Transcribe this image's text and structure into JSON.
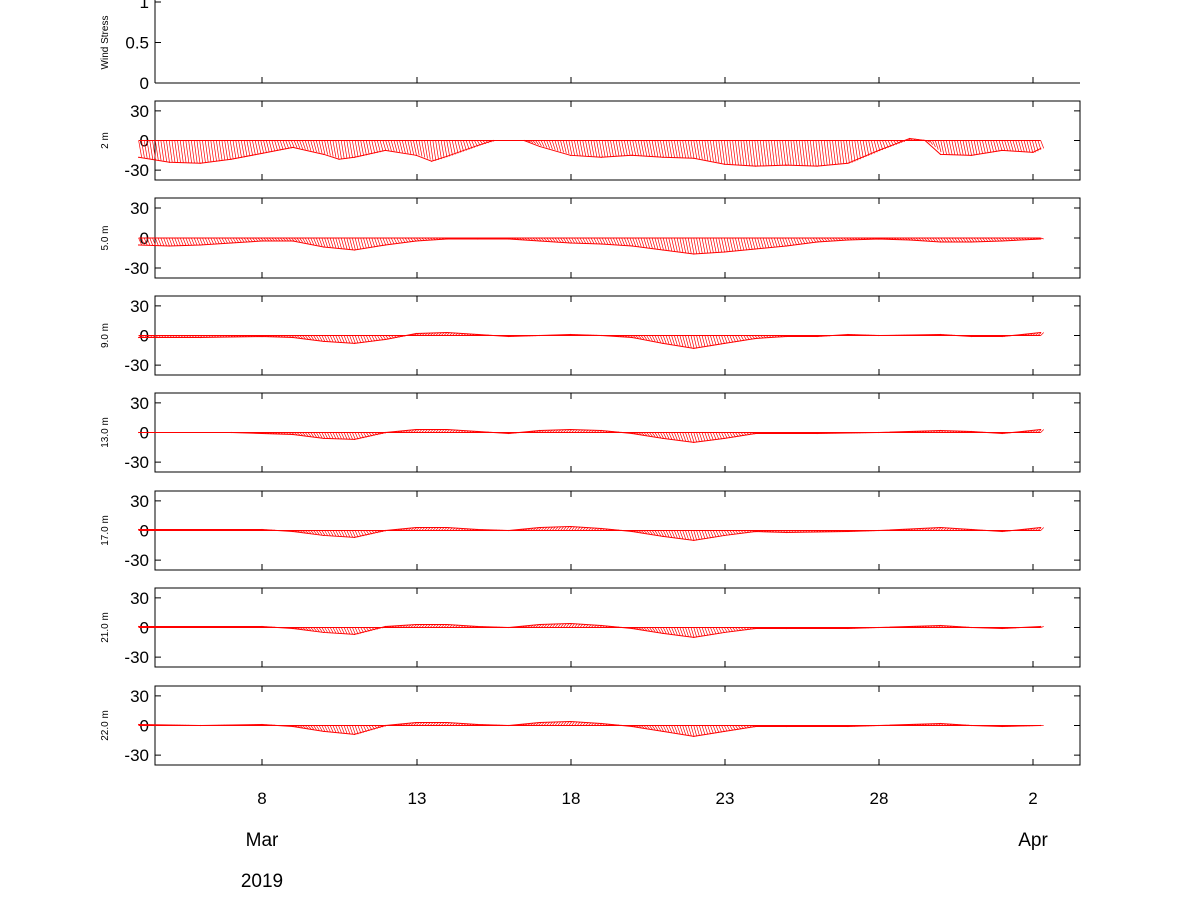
{
  "chart_data": {
    "type": "line",
    "x_tick_labels": [
      "8",
      "13",
      "18",
      "23",
      "28",
      "2"
    ],
    "x_month_labels": [
      "Mar",
      "Apr"
    ],
    "x_year_label": "2019",
    "series_color": "#ff0000",
    "panels": [
      {
        "ylabel": "Wind Stress",
        "ylim": [
          0,
          1
        ],
        "y_ticks": [
          "0",
          "0.5",
          "1"
        ],
        "open_box": true,
        "values": []
      },
      {
        "ylabel": "2 m",
        "ylim": [
          -40,
          40
        ],
        "y_ticks": [
          "30",
          "0",
          "-30"
        ],
        "values": [
          {
            "x": "Mar 4 00:00",
            "y": -17
          },
          {
            "x": "Mar 5 00:00",
            "y": -22
          },
          {
            "x": "Mar 6 00:00",
            "y": -23
          },
          {
            "x": "Mar 7 00:00",
            "y": -19
          },
          {
            "x": "Mar 8 00:00",
            "y": -13
          },
          {
            "x": "Mar 9 00:00",
            "y": -7
          },
          {
            "x": "Mar 10 00:00",
            "y": -14
          },
          {
            "x": "Mar 10 12:00",
            "y": -19
          },
          {
            "x": "Mar 11 00:00",
            "y": -17
          },
          {
            "x": "Mar 12 00:00",
            "y": -10
          },
          {
            "x": "Mar 13 00:00",
            "y": -15
          },
          {
            "x": "Mar 13 12:00",
            "y": -21
          },
          {
            "x": "Mar 14 00:00",
            "y": -16
          },
          {
            "x": "Mar 15 00:00",
            "y": -5
          },
          {
            "x": "Mar 15 12:00",
            "y": 0
          },
          {
            "x": "Mar 16 12:00",
            "y": 0
          },
          {
            "x": "Mar 17 00:00",
            "y": -6
          },
          {
            "x": "Mar 18 00:00",
            "y": -15
          },
          {
            "x": "Mar 19 00:00",
            "y": -17
          },
          {
            "x": "Mar 20 00:00",
            "y": -15
          },
          {
            "x": "Mar 21 00:00",
            "y": -17
          },
          {
            "x": "Mar 22 00:00",
            "y": -18
          },
          {
            "x": "Mar 23 00:00",
            "y": -24
          },
          {
            "x": "Mar 24 00:00",
            "y": -26
          },
          {
            "x": "Mar 25 00:00",
            "y": -25
          },
          {
            "x": "Mar 26 00:00",
            "y": -26
          },
          {
            "x": "Mar 27 00:00",
            "y": -23
          },
          {
            "x": "Mar 28 00:00",
            "y": -10
          },
          {
            "x": "Mar 29 00:00",
            "y": 2
          },
          {
            "x": "Mar 29 12:00",
            "y": 0
          },
          {
            "x": "Mar 30 00:00",
            "y": -14
          },
          {
            "x": "Mar 31 00:00",
            "y": -15
          },
          {
            "x": "Apr 1 00:00",
            "y": -10
          },
          {
            "x": "Apr 2 00:00",
            "y": -12
          },
          {
            "x": "Apr 2 06:00",
            "y": -8
          }
        ]
      },
      {
        "ylabel": "5.0 m",
        "ylim": [
          -40,
          40
        ],
        "y_ticks": [
          "30",
          "0",
          "-30"
        ],
        "values": [
          {
            "x": "Mar 4 00:00",
            "y": -7
          },
          {
            "x": "Mar 5 00:00",
            "y": -8
          },
          {
            "x": "Mar 6 00:00",
            "y": -7
          },
          {
            "x": "Mar 7 00:00",
            "y": -5
          },
          {
            "x": "Mar 8 00:00",
            "y": -3
          },
          {
            "x": "Mar 9 00:00",
            "y": -3
          },
          {
            "x": "Mar 10 00:00",
            "y": -9
          },
          {
            "x": "Mar 11 00:00",
            "y": -12
          },
          {
            "x": "Mar 12 00:00",
            "y": -7
          },
          {
            "x": "Mar 13 00:00",
            "y": -3
          },
          {
            "x": "Mar 14 00:00",
            "y": -1
          },
          {
            "x": "Mar 15 00:00",
            "y": -1
          },
          {
            "x": "Mar 16 00:00",
            "y": -1
          },
          {
            "x": "Mar 17 00:00",
            "y": -3
          },
          {
            "x": "Mar 18 00:00",
            "y": -5
          },
          {
            "x": "Mar 19 00:00",
            "y": -6
          },
          {
            "x": "Mar 20 00:00",
            "y": -8
          },
          {
            "x": "Mar 21 00:00",
            "y": -12
          },
          {
            "x": "Mar 22 00:00",
            "y": -16
          },
          {
            "x": "Mar 23 00:00",
            "y": -14
          },
          {
            "x": "Mar 24 00:00",
            "y": -11
          },
          {
            "x": "Mar 25 00:00",
            "y": -8
          },
          {
            "x": "Mar 26 00:00",
            "y": -4
          },
          {
            "x": "Mar 27 00:00",
            "y": -2
          },
          {
            "x": "Mar 28 00:00",
            "y": -1
          },
          {
            "x": "Mar 29 00:00",
            "y": -2
          },
          {
            "x": "Mar 30 00:00",
            "y": -4
          },
          {
            "x": "Mar 31 00:00",
            "y": -4
          },
          {
            "x": "Apr 1 00:00",
            "y": -3
          },
          {
            "x": "Apr 2 06:00",
            "y": -1
          }
        ]
      },
      {
        "ylabel": "9.0 m",
        "ylim": [
          -40,
          40
        ],
        "y_ticks": [
          "30",
          "0",
          "-30"
        ],
        "values": [
          {
            "x": "Mar 4 00:00",
            "y": -2
          },
          {
            "x": "Mar 6 00:00",
            "y": -2
          },
          {
            "x": "Mar 8 00:00",
            "y": -1
          },
          {
            "x": "Mar 9 00:00",
            "y": -2
          },
          {
            "x": "Mar 10 00:00",
            "y": -6
          },
          {
            "x": "Mar 11 00:00",
            "y": -8
          },
          {
            "x": "Mar 12 00:00",
            "y": -4
          },
          {
            "x": "Mar 13 00:00",
            "y": 2
          },
          {
            "x": "Mar 14 00:00",
            "y": 3
          },
          {
            "x": "Mar 15 00:00",
            "y": 1
          },
          {
            "x": "Mar 16 00:00",
            "y": -1
          },
          {
            "x": "Mar 17 00:00",
            "y": 0
          },
          {
            "x": "Mar 18 00:00",
            "y": 1
          },
          {
            "x": "Mar 19 00:00",
            "y": 0
          },
          {
            "x": "Mar 20 00:00",
            "y": -2
          },
          {
            "x": "Mar 21 00:00",
            "y": -8
          },
          {
            "x": "Mar 22 00:00",
            "y": -13
          },
          {
            "x": "Mar 23 00:00",
            "y": -8
          },
          {
            "x": "Mar 24 00:00",
            "y": -3
          },
          {
            "x": "Mar 25 00:00",
            "y": -1
          },
          {
            "x": "Mar 26 00:00",
            "y": -1
          },
          {
            "x": "Mar 27 00:00",
            "y": 1
          },
          {
            "x": "Mar 28 00:00",
            "y": 0
          },
          {
            "x": "Mar 30 00:00",
            "y": 1
          },
          {
            "x": "Mar 31 00:00",
            "y": -1
          },
          {
            "x": "Apr 1 00:00",
            "y": -1
          },
          {
            "x": "Apr 2 06:00",
            "y": 3
          }
        ]
      },
      {
        "ylabel": "13.0 m",
        "ylim": [
          -40,
          40
        ],
        "y_ticks": [
          "30",
          "0",
          "-30"
        ],
        "values": [
          {
            "x": "Mar 4 00:00",
            "y": 0
          },
          {
            "x": "Mar 7 00:00",
            "y": 0
          },
          {
            "x": "Mar 9 00:00",
            "y": -2
          },
          {
            "x": "Mar 10 00:00",
            "y": -6
          },
          {
            "x": "Mar 11 00:00",
            "y": -7
          },
          {
            "x": "Mar 12 00:00",
            "y": 0
          },
          {
            "x": "Mar 13 00:00",
            "y": 3
          },
          {
            "x": "Mar 14 00:00",
            "y": 3
          },
          {
            "x": "Mar 15 00:00",
            "y": 1
          },
          {
            "x": "Mar 16 00:00",
            "y": -1
          },
          {
            "x": "Mar 17 00:00",
            "y": 2
          },
          {
            "x": "Mar 18 00:00",
            "y": 3
          },
          {
            "x": "Mar 19 00:00",
            "y": 2
          },
          {
            "x": "Mar 20 00:00",
            "y": -1
          },
          {
            "x": "Mar 21 00:00",
            "y": -6
          },
          {
            "x": "Mar 22 00:00",
            "y": -10
          },
          {
            "x": "Mar 23 00:00",
            "y": -6
          },
          {
            "x": "Mar 24 00:00",
            "y": -1
          },
          {
            "x": "Mar 26 00:00",
            "y": -1
          },
          {
            "x": "Mar 28 00:00",
            "y": 0
          },
          {
            "x": "Mar 30 00:00",
            "y": 2
          },
          {
            "x": "Mar 31 00:00",
            "y": 1
          },
          {
            "x": "Apr 1 00:00",
            "y": -1
          },
          {
            "x": "Apr 2 06:00",
            "y": 3
          }
        ]
      },
      {
        "ylabel": "17.0 m",
        "ylim": [
          -40,
          40
        ],
        "y_ticks": [
          "30",
          "0",
          "-30"
        ],
        "values": [
          {
            "x": "Mar 4 00:00",
            "y": 1
          },
          {
            "x": "Mar 8 00:00",
            "y": 1
          },
          {
            "x": "Mar 9 00:00",
            "y": -1
          },
          {
            "x": "Mar 10 00:00",
            "y": -5
          },
          {
            "x": "Mar 11 00:00",
            "y": -7
          },
          {
            "x": "Mar 12 00:00",
            "y": 0
          },
          {
            "x": "Mar 13 00:00",
            "y": 3
          },
          {
            "x": "Mar 14 00:00",
            "y": 3
          },
          {
            "x": "Mar 15 00:00",
            "y": 1
          },
          {
            "x": "Mar 16 00:00",
            "y": 0
          },
          {
            "x": "Mar 17 00:00",
            "y": 3
          },
          {
            "x": "Mar 18 00:00",
            "y": 4
          },
          {
            "x": "Mar 19 00:00",
            "y": 2
          },
          {
            "x": "Mar 20 00:00",
            "y": -1
          },
          {
            "x": "Mar 21 00:00",
            "y": -6
          },
          {
            "x": "Mar 22 00:00",
            "y": -10
          },
          {
            "x": "Mar 23 00:00",
            "y": -5
          },
          {
            "x": "Mar 24 00:00",
            "y": -1
          },
          {
            "x": "Mar 25 00:00",
            "y": -2
          },
          {
            "x": "Mar 27 00:00",
            "y": -1
          },
          {
            "x": "Mar 28 00:00",
            "y": 0
          },
          {
            "x": "Mar 30 00:00",
            "y": 3
          },
          {
            "x": "Mar 31 00:00",
            "y": 1
          },
          {
            "x": "Apr 1 00:00",
            "y": -1
          },
          {
            "x": "Apr 2 06:00",
            "y": 3
          }
        ]
      },
      {
        "ylabel": "21.0 m",
        "ylim": [
          -40,
          40
        ],
        "y_ticks": [
          "30",
          "0",
          "-30"
        ],
        "values": [
          {
            "x": "Mar 4 00:00",
            "y": 1
          },
          {
            "x": "Mar 8 00:00",
            "y": 1
          },
          {
            "x": "Mar 9 00:00",
            "y": -1
          },
          {
            "x": "Mar 10 00:00",
            "y": -5
          },
          {
            "x": "Mar 11 00:00",
            "y": -7
          },
          {
            "x": "Mar 12 00:00",
            "y": 1
          },
          {
            "x": "Mar 13 00:00",
            "y": 3
          },
          {
            "x": "Mar 14 00:00",
            "y": 3
          },
          {
            "x": "Mar 15 00:00",
            "y": 1
          },
          {
            "x": "Mar 16 00:00",
            "y": 0
          },
          {
            "x": "Mar 17 00:00",
            "y": 3
          },
          {
            "x": "Mar 18 00:00",
            "y": 4
          },
          {
            "x": "Mar 19 00:00",
            "y": 2
          },
          {
            "x": "Mar 20 00:00",
            "y": -1
          },
          {
            "x": "Mar 21 00:00",
            "y": -6
          },
          {
            "x": "Mar 22 00:00",
            "y": -10
          },
          {
            "x": "Mar 23 00:00",
            "y": -5
          },
          {
            "x": "Mar 24 00:00",
            "y": -1
          },
          {
            "x": "Mar 25 00:00",
            "y": -1
          },
          {
            "x": "Mar 27 00:00",
            "y": -1
          },
          {
            "x": "Mar 28 00:00",
            "y": 0
          },
          {
            "x": "Mar 30 00:00",
            "y": 2
          },
          {
            "x": "Mar 31 00:00",
            "y": 0
          },
          {
            "x": "Apr 1 00:00",
            "y": -1
          },
          {
            "x": "Apr 2 06:00",
            "y": 1
          }
        ]
      },
      {
        "ylabel": "22.0 m",
        "ylim": [
          -40,
          40
        ],
        "y_ticks": [
          "30",
          "0",
          "-30"
        ],
        "values": [
          {
            "x": "Mar 4 00:00",
            "y": 1
          },
          {
            "x": "Mar 6 00:00",
            "y": 0
          },
          {
            "x": "Mar 8 00:00",
            "y": 1
          },
          {
            "x": "Mar 9 00:00",
            "y": -1
          },
          {
            "x": "Mar 10 00:00",
            "y": -6
          },
          {
            "x": "Mar 11 00:00",
            "y": -9
          },
          {
            "x": "Mar 12 00:00",
            "y": 0
          },
          {
            "x": "Mar 13 00:00",
            "y": 3
          },
          {
            "x": "Mar 14 00:00",
            "y": 3
          },
          {
            "x": "Mar 15 00:00",
            "y": 1
          },
          {
            "x": "Mar 16 00:00",
            "y": 0
          },
          {
            "x": "Mar 17 00:00",
            "y": 3
          },
          {
            "x": "Mar 18 00:00",
            "y": 4
          },
          {
            "x": "Mar 19 00:00",
            "y": 2
          },
          {
            "x": "Mar 20 00:00",
            "y": -1
          },
          {
            "x": "Mar 21 00:00",
            "y": -6
          },
          {
            "x": "Mar 22 00:00",
            "y": -11
          },
          {
            "x": "Mar 23 00:00",
            "y": -6
          },
          {
            "x": "Mar 24 00:00",
            "y": -1
          },
          {
            "x": "Mar 25 00:00",
            "y": -1
          },
          {
            "x": "Mar 27 00:00",
            "y": -1
          },
          {
            "x": "Mar 28 00:00",
            "y": 0
          },
          {
            "x": "Mar 30 00:00",
            "y": 2
          },
          {
            "x": "Mar 31 00:00",
            "y": 0
          },
          {
            "x": "Apr 1 00:00",
            "y": -1
          },
          {
            "x": "Apr 2 06:00",
            "y": 0
          }
        ]
      }
    ]
  }
}
